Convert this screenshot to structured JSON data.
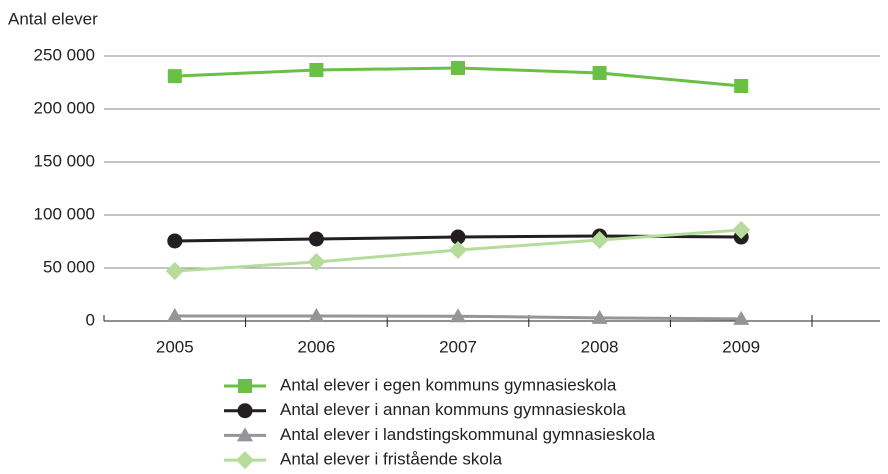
{
  "chart_data": {
    "type": "line",
    "y_label": "Antal elever",
    "categories": [
      "2005",
      "2006",
      "2007",
      "2008",
      "2009"
    ],
    "series": [
      {
        "name": "Antal elever i egen kommuns gymnasieskola",
        "color": "#6abf45",
        "marker": "square",
        "values": [
          231000,
          236800,
          238700,
          234000,
          221700
        ]
      },
      {
        "name": "Antal elever i annan kommuns gymnasieskola",
        "color": "#231f20",
        "marker": "circle",
        "values": [
          75500,
          77400,
          79200,
          80200,
          79200
        ]
      },
      {
        "name": "Antal elever i landstingskommunal gymnasieskola",
        "color": "#939598",
        "marker": "triangle",
        "values": [
          4700,
          4700,
          4500,
          3000,
          2000
        ]
      },
      {
        "name": "Antal elever i fristående skola",
        "color": "#b5dc9a",
        "marker": "diamond",
        "values": [
          47200,
          55700,
          67000,
          76400,
          85800
        ]
      }
    ],
    "ylim": [
      0,
      250000
    ],
    "yticks": [
      0,
      {
        "value": 50000,
        "label": "50 000"
      },
      {
        "value": 100000,
        "label": "100 000"
      },
      {
        "value": 150000,
        "label": "150 000"
      },
      {
        "value": 200000,
        "label": "200 000"
      },
      {
        "value": 250000,
        "label": "250 000"
      }
    ],
    "grid": true,
    "legend": "bottom"
  }
}
